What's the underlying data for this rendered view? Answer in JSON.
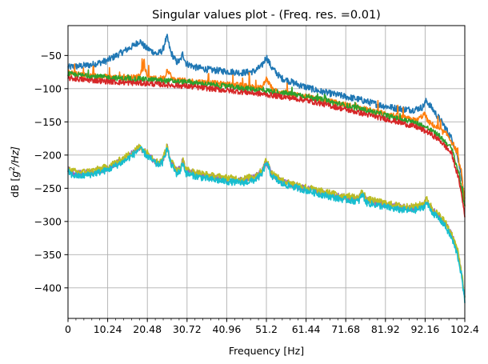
{
  "chart_data": {
    "type": "line",
    "title": "Singular values plot - (Freq. res. =0.01)",
    "xlabel": "Frequency [Hz]",
    "ylabel_prefix": "dB [",
    "ylabel_math": "g",
    "ylabel_sup": "2",
    "ylabel_suffix": "/Hz]",
    "xlim": [
      0,
      102.4
    ],
    "ylim": [
      -446,
      -5
    ],
    "xticks": [
      0,
      10.24,
      20.48,
      30.72,
      40.96,
      51.2,
      61.44,
      71.68,
      81.92,
      92.16,
      102.4
    ],
    "xtick_labels": [
      "0",
      "10.24",
      "20.48",
      "30.72",
      "40.96",
      "51.2",
      "61.44",
      "71.68",
      "81.92",
      "92.16",
      "102.4"
    ],
    "yticks": [
      -50,
      -100,
      -150,
      -200,
      -250,
      -300,
      -350,
      -400
    ],
    "ytick_labels": [
      "−50",
      "−100",
      "−150",
      "−200",
      "−250",
      "−300",
      "−350",
      "−400"
    ],
    "grid": true,
    "colors": {
      "blue": "#1f77b4",
      "orange": "#ff7f0e",
      "green": "#2ca02c",
      "red": "#d62728",
      "purple": "#9467bd",
      "olive": "#bcbd22",
      "cyan": "#17becf",
      "grid": "#b0b0b0"
    },
    "series": [
      {
        "color": "#1f77b4",
        "x": [
          0,
          1,
          3,
          6,
          10,
          14,
          17,
          18.5,
          20,
          23,
          24.5,
          25,
          25.6,
          26.5,
          28,
          29,
          29.6,
          30.5,
          33,
          37,
          41,
          45,
          48,
          50,
          51.2,
          52.5,
          55,
          60,
          65,
          70,
          75,
          80,
          85,
          89,
          91.5,
          92.5,
          94,
          97,
          99,
          100.5,
          101.5,
          102.4
        ],
        "y": [
          -68,
          -67,
          -66,
          -64,
          -58,
          -45,
          -35,
          -28,
          -38,
          -48,
          -42,
          -30,
          -23,
          -45,
          -60,
          -58,
          -47,
          -62,
          -68,
          -72,
          -74,
          -76,
          -74,
          -66,
          -52,
          -68,
          -84,
          -95,
          -104,
          -110,
          -116,
          -124,
          -130,
          -132,
          -128,
          -118,
          -130,
          -155,
          -175,
          -200,
          -230,
          -270
        ]
      },
      {
        "color": "#ff7f0e",
        "x": [
          0,
          2,
          5,
          10,
          15,
          18,
          19.5,
          21,
          25,
          25.6,
          27,
          30,
          35,
          40,
          45,
          50,
          51.2,
          53,
          60,
          70,
          80,
          90,
          92,
          93,
          95,
          98,
          100,
          101.5,
          102.4
        ],
        "y": [
          -75,
          -78,
          -80,
          -82,
          -84,
          -82,
          -68,
          -85,
          -84,
          -70,
          -86,
          -88,
          -90,
          -93,
          -95,
          -99,
          -85,
          -103,
          -110,
          -122,
          -135,
          -148,
          -138,
          -150,
          -158,
          -170,
          -190,
          -225,
          -275
        ]
      },
      {
        "color": "#2ca02c",
        "x": [
          0,
          5,
          10,
          15,
          20,
          25,
          30,
          35,
          40,
          45,
          50,
          55,
          60,
          65,
          70,
          75,
          80,
          85,
          90,
          93,
          96,
          99,
          101,
          102.4
        ],
        "y": [
          -78,
          -81,
          -83,
          -85,
          -86,
          -88,
          -90,
          -93,
          -96,
          -99,
          -102,
          -106,
          -110,
          -116,
          -123,
          -130,
          -137,
          -145,
          -152,
          -160,
          -172,
          -190,
          -230,
          -280
        ]
      },
      {
        "color": "#d62728",
        "x": [
          0,
          5,
          10,
          15,
          20,
          25,
          30,
          35,
          40,
          45,
          50,
          55,
          60,
          65,
          70,
          75,
          80,
          85,
          90,
          93,
          96,
          99,
          101,
          102.4
        ],
        "y": [
          -84,
          -87,
          -89,
          -91,
          -92,
          -94,
          -96,
          -99,
          -102,
          -105,
          -108,
          -112,
          -116,
          -122,
          -129,
          -136,
          -143,
          -150,
          -158,
          -166,
          -178,
          -198,
          -240,
          -290
        ]
      },
      {
        "color": "#9467bd",
        "x": [
          0,
          1,
          3,
          6,
          10,
          14,
          17,
          18.5,
          20,
          23,
          24.5,
          25,
          25.6,
          26.5,
          28,
          29,
          29.6,
          30.5,
          33,
          37,
          41,
          45,
          48,
          50,
          51.2,
          52.5,
          55,
          60,
          65,
          70,
          75,
          76,
          77,
          80,
          85,
          89,
          91.5,
          92.5,
          94,
          97,
          99,
          100.5,
          101.5,
          102.4
        ],
        "y": [
          -222,
          -226,
          -228,
          -226,
          -220,
          -208,
          -196,
          -188,
          -196,
          -212,
          -208,
          -196,
          -188,
          -210,
          -224,
          -220,
          -208,
          -224,
          -228,
          -233,
          -236,
          -238,
          -234,
          -226,
          -208,
          -228,
          -240,
          -248,
          -256,
          -262,
          -266,
          -256,
          -268,
          -272,
          -278,
          -280,
          -276,
          -268,
          -282,
          -300,
          -320,
          -345,
          -375,
          -418
        ]
      },
      {
        "color": "#bcbd22",
        "x": [
          0,
          1,
          3,
          6,
          10,
          14,
          17,
          18.5,
          20,
          23,
          24.5,
          25,
          25.6,
          26.5,
          28,
          29,
          29.6,
          30.5,
          33,
          37,
          41,
          45,
          48,
          50,
          51.2,
          52.5,
          55,
          60,
          65,
          70,
          75,
          76,
          77,
          80,
          85,
          89,
          91.5,
          92.5,
          94,
          97,
          99,
          100.5,
          101.5,
          102.4
        ],
        "y": [
          -220,
          -224,
          -226,
          -224,
          -218,
          -206,
          -194,
          -187,
          -194,
          -210,
          -206,
          -195,
          -187,
          -208,
          -222,
          -218,
          -206,
          -222,
          -226,
          -231,
          -234,
          -236,
          -232,
          -224,
          -206,
          -226,
          -238,
          -246,
          -254,
          -260,
          -264,
          -254,
          -266,
          -270,
          -276,
          -278,
          -274,
          -266,
          -280,
          -298,
          -318,
          -343,
          -373,
          -415
        ]
      },
      {
        "color": "#17becf",
        "x": [
          0,
          1,
          3,
          6,
          10,
          14,
          17,
          18.5,
          20,
          23,
          24.5,
          25,
          25.6,
          26.5,
          28,
          29,
          29.6,
          30.5,
          33,
          37,
          41,
          45,
          48,
          50,
          51.2,
          52.5,
          55,
          60,
          65,
          70,
          75,
          76,
          77,
          80,
          85,
          89,
          91.5,
          92.5,
          94,
          97,
          99,
          100.5,
          101.5,
          102.4
        ],
        "y": [
          -225,
          -230,
          -232,
          -229,
          -223,
          -211,
          -199,
          -190,
          -199,
          -215,
          -211,
          -199,
          -190,
          -213,
          -228,
          -224,
          -211,
          -228,
          -232,
          -237,
          -240,
          -242,
          -238,
          -230,
          -211,
          -231,
          -243,
          -251,
          -259,
          -266,
          -270,
          -259,
          -272,
          -276,
          -282,
          -284,
          -280,
          -272,
          -286,
          -304,
          -325,
          -350,
          -380,
          -422
        ]
      }
    ]
  }
}
